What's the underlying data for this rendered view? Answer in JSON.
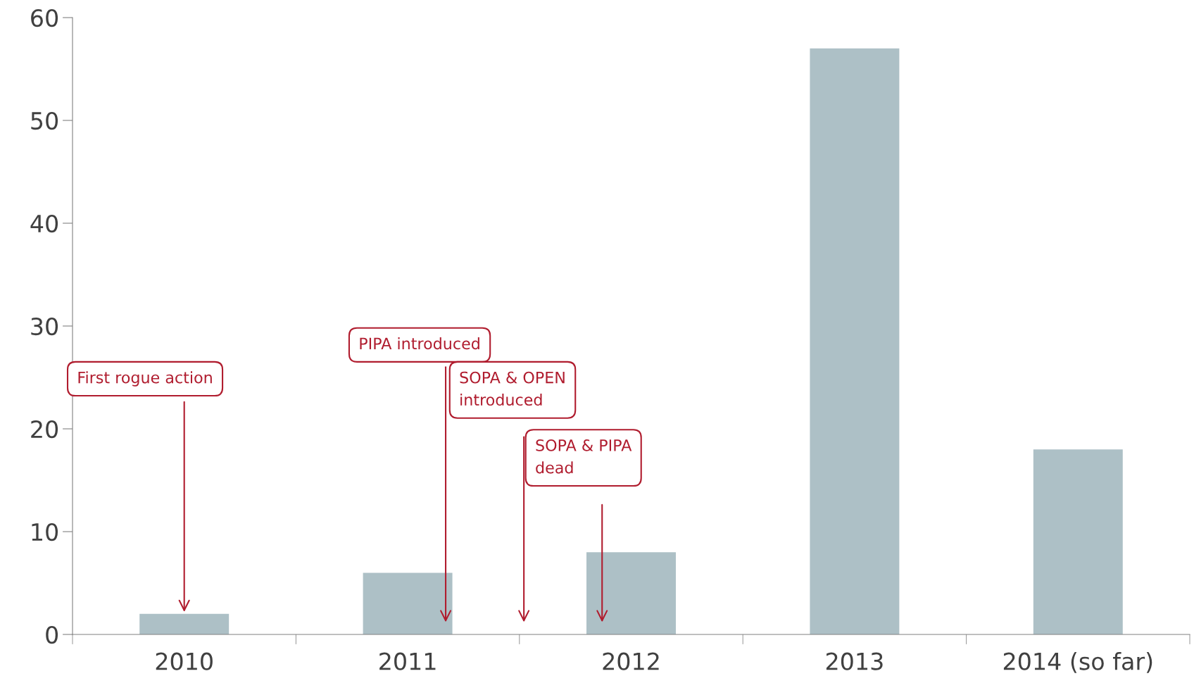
{
  "chart_data": {
    "type": "bar",
    "categories": [
      "2010",
      "2011",
      "2012",
      "2013",
      "2014 (so far)"
    ],
    "values": [
      2,
      6,
      8,
      57,
      18
    ],
    "color": "#adc0c6",
    "ylim": [
      0,
      60
    ],
    "yticks": [
      0,
      10,
      20,
      30,
      40,
      50,
      60
    ],
    "grid": false,
    "legend": false,
    "annotations": [
      {
        "text": "First rogue action",
        "x": "2010",
        "y": 2
      },
      "PIPA introduced",
      "SOPA & OPEN\nintroduced",
      "SOPA & PIPA\ndead"
    ]
  }
}
